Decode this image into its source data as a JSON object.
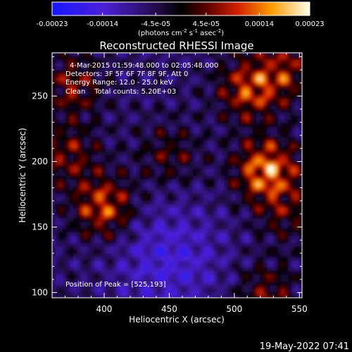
{
  "chart_data": {
    "type": "heatmap",
    "title": "Reconstructed RHESSI Image",
    "xlabel": "Heliocentric X (arcsec)",
    "ylabel": "Heliocentric Y (arcsec)",
    "xlim": [
      360,
      552
    ],
    "ylim": [
      96,
      283
    ],
    "xticks": [
      400,
      450,
      500,
      550
    ],
    "yticks": [
      100,
      150,
      200,
      250
    ],
    "colorbar": {
      "ticks": [
        "-0.00023",
        "-0.00014",
        "-4.5e-05",
        "4.5e-05",
        "0.00014",
        "0.00023"
      ],
      "values": [
        -0.00023,
        -0.00014,
        -4.5e-05,
        4.5e-05,
        0.00014,
        0.00023
      ],
      "range": [
        -0.00023,
        0.00023
      ],
      "unit_parts": [
        "(photons cm",
        "-2",
        " s",
        "-1",
        " asec",
        "-2",
        ")"
      ]
    },
    "annotations": [
      "4-Mar-2015 01:59:48.000 to 02:05:48.000",
      "Detectors: 3F 5F 6F 7F 8F 9F, Att 0",
      "Energy Range: 12.0 - 25.0 keV",
      "Clean    Total counts: 5.20E+03"
    ],
    "peak_label": "Position of Peak = [525,193]",
    "sources": [
      {
        "x": 525,
        "y": 193,
        "value": 0.00023
      },
      {
        "x": 512,
        "y": 255,
        "value": 0.00017
      },
      {
        "x": 400,
        "y": 165,
        "value": 0.00018
      },
      {
        "x": 372,
        "y": 205,
        "value": 0.00011
      },
      {
        "x": 375,
        "y": 258,
        "value": 0.00012
      },
      {
        "x": 540,
        "y": 270,
        "value": 0.00012
      },
      {
        "x": 450,
        "y": 205,
        "value": 8e-05
      },
      {
        "x": 525,
        "y": 100,
        "value": 0.0001
      },
      {
        "x": 540,
        "y": 160,
        "value": 8e-05
      }
    ],
    "colors": {
      "background": "#000000",
      "text": "#ffffff",
      "low": "#1010ff",
      "mid": "#000000",
      "high": "#ffffe0"
    }
  },
  "footer": {
    "timestamp": "19-May-2022 07:41"
  }
}
